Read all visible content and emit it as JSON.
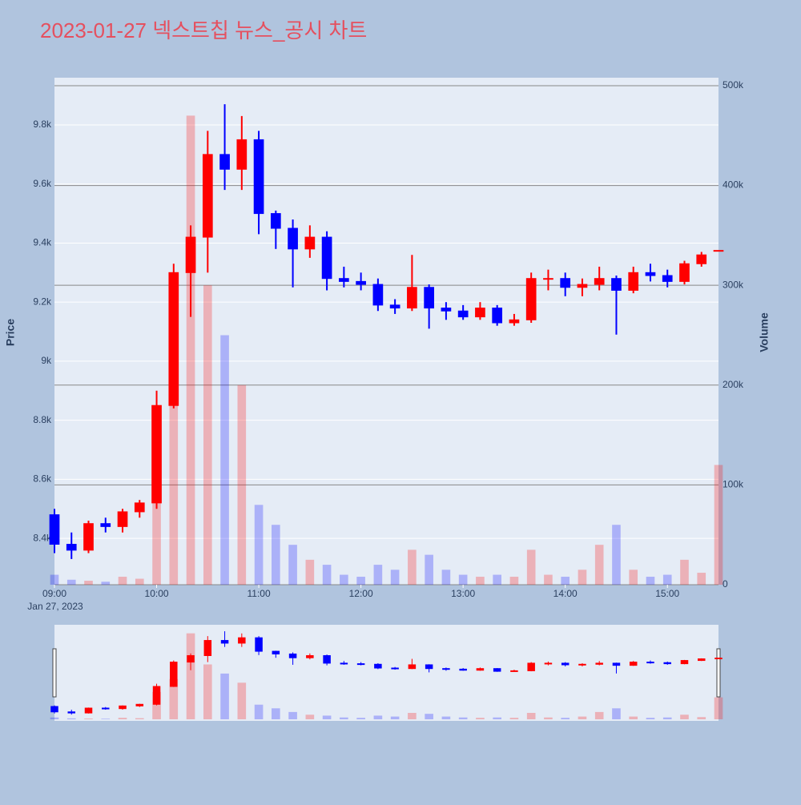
{
  "chart_data": {
    "type": "candlestick",
    "title": "2023-01-27 넥스트칩 뉴스_공시 차트",
    "ylabel": "Price",
    "y2label": "Volume",
    "xdate": "Jan 27, 2023",
    "increasing_color": "#ff0000",
    "decreasing_color": "#0000ff",
    "x": [
      "09:00",
      "09:10",
      "09:20",
      "09:30",
      "09:40",
      "09:50",
      "10:00",
      "10:10",
      "10:20",
      "10:30",
      "10:40",
      "10:50",
      "11:00",
      "11:10",
      "11:20",
      "11:30",
      "11:40",
      "11:50",
      "12:00",
      "12:10",
      "12:20",
      "12:30",
      "12:40",
      "12:50",
      "13:00",
      "13:10",
      "13:20",
      "13:30",
      "13:40",
      "13:50",
      "14:00",
      "14:10",
      "14:20",
      "14:30",
      "14:40",
      "14:50",
      "15:00",
      "15:10",
      "15:20",
      "15:30"
    ],
    "open": [
      8480,
      8380,
      8360,
      8450,
      8440,
      8490,
      8520,
      8850,
      9300,
      9420,
      9700,
      9650,
      9750,
      9500,
      9450,
      9380,
      9420,
      9280,
      9270,
      9260,
      9190,
      9180,
      9250,
      9180,
      9170,
      9150,
      9180,
      9130,
      9140,
      9280,
      9280,
      9250,
      9260,
      9280,
      9240,
      9300,
      9290,
      9270,
      9330,
      9375
    ],
    "high": [
      8500,
      8420,
      8460,
      8470,
      8500,
      8530,
      8900,
      9330,
      9460,
      9780,
      9870,
      9830,
      9780,
      9510,
      9480,
      9460,
      9440,
      9320,
      9300,
      9280,
      9210,
      9360,
      9260,
      9200,
      9190,
      9200,
      9190,
      9160,
      9300,
      9310,
      9300,
      9280,
      9320,
      9290,
      9320,
      9330,
      9310,
      9340,
      9370,
      9375
    ],
    "low": [
      8350,
      8330,
      8350,
      8420,
      8420,
      8470,
      8500,
      8840,
      9150,
      9300,
      9580,
      9580,
      9430,
      9380,
      9250,
      9350,
      9240,
      9250,
      9240,
      9170,
      9160,
      9170,
      9110,
      9140,
      9140,
      9140,
      9120,
      9120,
      9130,
      9240,
      9220,
      9220,
      9240,
      9090,
      9230,
      9270,
      9250,
      9260,
      9320,
      9375
    ],
    "close": [
      8380,
      8360,
      8450,
      8440,
      8490,
      8520,
      8850,
      9300,
      9420,
      9700,
      9650,
      9750,
      9500,
      9450,
      9380,
      9420,
      9280,
      9270,
      9260,
      9190,
      9180,
      9250,
      9180,
      9170,
      9150,
      9180,
      9130,
      9140,
      9280,
      9280,
      9250,
      9260,
      9280,
      9240,
      9300,
      9290,
      9270,
      9330,
      9360,
      9375
    ],
    "volume": [
      10000,
      5000,
      4000,
      3000,
      8000,
      6000,
      150000,
      220000,
      470000,
      300000,
      250000,
      200000,
      80000,
      60000,
      40000,
      25000,
      20000,
      10000,
      8000,
      20000,
      15000,
      35000,
      30000,
      15000,
      10000,
      8000,
      10000,
      8000,
      35000,
      10000,
      8000,
      15000,
      40000,
      60000,
      15000,
      8000,
      10000,
      25000,
      12000,
      120000
    ],
    "xlim": [
      "09:00",
      "15:30"
    ],
    "xticks": [
      "09:00",
      "10:00",
      "11:00",
      "12:00",
      "13:00",
      "14:00",
      "15:00"
    ],
    "ylim": [
      8243,
      9960
    ],
    "yticks": [
      {
        "value": 8400,
        "label": "8.4k"
      },
      {
        "value": 8600,
        "label": "8.6k"
      },
      {
        "value": 8800,
        "label": "8.8k"
      },
      {
        "value": 9000,
        "label": "9k"
      },
      {
        "value": 9200,
        "label": "9.2k"
      },
      {
        "value": 9400,
        "label": "9.4k"
      },
      {
        "value": 9600,
        "label": "9.6k"
      },
      {
        "value": 9800,
        "label": "9.8k"
      }
    ],
    "y2lim": [
      0,
      508000
    ],
    "y2ticks": [
      0,
      {
        "value": 100000,
        "label": "100k"
      },
      {
        "value": 200000,
        "label": "200k"
      },
      {
        "value": 300000,
        "label": "300k"
      },
      {
        "value": 400000,
        "label": "400k"
      },
      {
        "value": 500000,
        "label": "500k"
      }
    ],
    "grid": true,
    "rangeslider": true
  }
}
